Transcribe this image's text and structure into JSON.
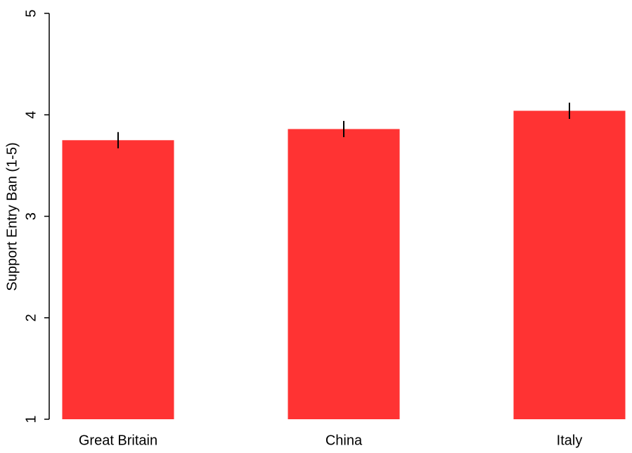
{
  "chart_data": {
    "type": "bar",
    "y_label": "Support Entry Ban (1-5)",
    "categories": [
      "Great Britain",
      "China",
      "Italy"
    ],
    "values": [
      3.75,
      3.86,
      4.04
    ],
    "errors": [
      0.08,
      0.08,
      0.08
    ],
    "color": "#ff3333",
    "ylim": [
      1,
      5
    ],
    "yticks": [
      1,
      2,
      3,
      4,
      5
    ]
  }
}
